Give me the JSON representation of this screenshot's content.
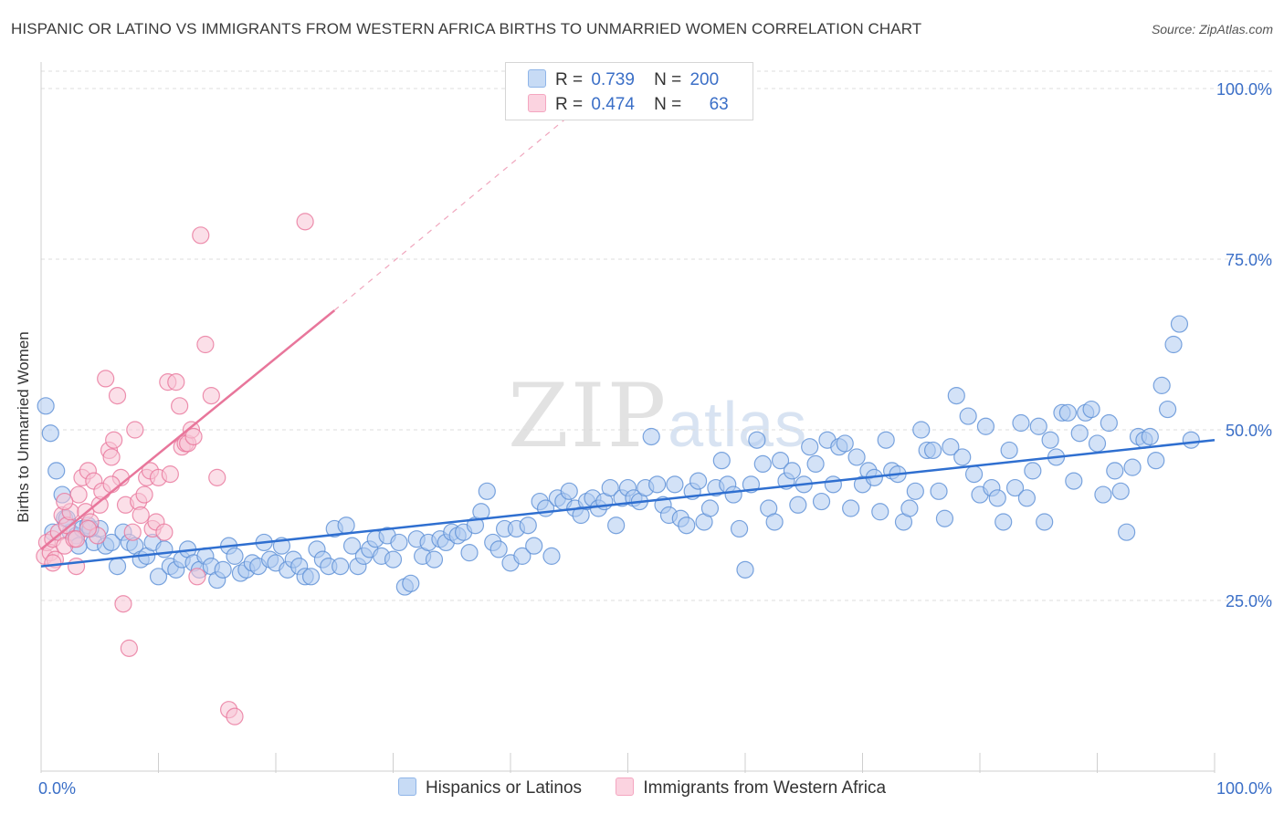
{
  "header": {
    "title": "HISPANIC OR LATINO VS IMMIGRANTS FROM WESTERN AFRICA BIRTHS TO UNMARRIED WOMEN CORRELATION CHART",
    "source": "Source: ZipAtlas.com"
  },
  "watermark": {
    "zip": "ZIP",
    "atlas": "atlas"
  },
  "legend": {
    "rows": [
      {
        "r_label": "R =",
        "r_value": "0.739",
        "n_label": "N =",
        "n_value": "200",
        "color": "#8fb5e8"
      },
      {
        "r_label": "R =",
        "r_value": "0.474",
        "n_label": "N =",
        "n_value": "63",
        "color": "#f4a6c0"
      }
    ]
  },
  "bottom_legend": {
    "items": [
      {
        "label": "Hispanics or Latinos",
        "color": "#8fb5e8"
      },
      {
        "label": "Immigrants from Western Africa",
        "color": "#f4a6c0"
      }
    ]
  },
  "chart_data": {
    "type": "scatter",
    "title": "HISPANIC OR LATINO VS IMMIGRANTS FROM WESTERN AFRICA BIRTHS TO UNMARRIED WOMEN CORRELATION CHART",
    "xlabel": "",
    "ylabel": "Births to Unmarried Women",
    "xlim": [
      0,
      100
    ],
    "ylim": [
      0,
      100
    ],
    "x_tick_labels": [
      "0.0%",
      "100.0%"
    ],
    "y_tick_labels": [
      "25.0%",
      "50.0%",
      "75.0%",
      "100.0%"
    ],
    "y_ticks": [
      25,
      50,
      75,
      100
    ],
    "grid": true,
    "series": [
      {
        "name": "Hispanics or Latinos",
        "color": "#5b8fd6",
        "fill": "#aecbf0",
        "trend": {
          "x": [
            0,
            100
          ],
          "y": [
            30.0,
            48.5
          ]
        },
        "points": [
          [
            0.4,
            53.5
          ],
          [
            0.8,
            49.5
          ],
          [
            1.3,
            44
          ],
          [
            1.8,
            40.5
          ],
          [
            2.0,
            37
          ],
          [
            2.5,
            35
          ],
          [
            3.0,
            34.5
          ],
          [
            3.5,
            35.5
          ],
          [
            4.0,
            36
          ],
          [
            4.5,
            33.5
          ],
          [
            5.0,
            35.5
          ],
          [
            5.5,
            33
          ],
          [
            6.0,
            33.5
          ],
          [
            6.5,
            30
          ],
          [
            7.0,
            35
          ],
          [
            7.5,
            33.5
          ],
          [
            8.0,
            33
          ],
          [
            8.5,
            31
          ],
          [
            9.0,
            31.5
          ],
          [
            9.5,
            33.5
          ],
          [
            10.0,
            28.5
          ],
          [
            10.5,
            32.5
          ],
          [
            11.0,
            30
          ],
          [
            11.5,
            29.5
          ],
          [
            12.0,
            31
          ],
          [
            12.5,
            32.5
          ],
          [
            13.0,
            30.5
          ],
          [
            13.5,
            29.5
          ],
          [
            14.0,
            31.5
          ],
          [
            14.5,
            30
          ],
          [
            15.0,
            28
          ],
          [
            15.5,
            29.5
          ],
          [
            16.0,
            33
          ],
          [
            16.5,
            31.5
          ],
          [
            17.0,
            29
          ],
          [
            17.5,
            29.5
          ],
          [
            18.0,
            30.5
          ],
          [
            18.5,
            30
          ],
          [
            19.0,
            33.5
          ],
          [
            19.5,
            31
          ],
          [
            20.0,
            30.5
          ],
          [
            20.5,
            33
          ],
          [
            21.0,
            29.5
          ],
          [
            21.5,
            31
          ],
          [
            22.0,
            30
          ],
          [
            22.5,
            28.5
          ],
          [
            23.0,
            28.5
          ],
          [
            23.5,
            32.5
          ],
          [
            24.0,
            31
          ],
          [
            24.5,
            30
          ],
          [
            25.0,
            35.5
          ],
          [
            25.5,
            30
          ],
          [
            26.0,
            36
          ],
          [
            26.5,
            33
          ],
          [
            27.0,
            30
          ],
          [
            27.5,
            31.5
          ],
          [
            28.0,
            32.5
          ],
          [
            28.5,
            34
          ],
          [
            29.0,
            31.5
          ],
          [
            29.5,
            34.5
          ],
          [
            30.0,
            31
          ],
          [
            30.5,
            33.5
          ],
          [
            31.0,
            27
          ],
          [
            31.5,
            27.5
          ],
          [
            32.0,
            34
          ],
          [
            32.5,
            31.5
          ],
          [
            33.0,
            33.5
          ],
          [
            33.5,
            31
          ],
          [
            34.0,
            34
          ],
          [
            34.5,
            33.5
          ],
          [
            35.0,
            35
          ],
          [
            35.5,
            34.5
          ],
          [
            36.0,
            35
          ],
          [
            36.5,
            32
          ],
          [
            37.0,
            36
          ],
          [
            37.5,
            38
          ],
          [
            38.0,
            41
          ],
          [
            38.5,
            33.5
          ],
          [
            39.0,
            32.5
          ],
          [
            39.5,
            35.5
          ],
          [
            40.0,
            30.5
          ],
          [
            40.5,
            35.5
          ],
          [
            41.0,
            31.5
          ],
          [
            41.5,
            36
          ],
          [
            42.0,
            33
          ],
          [
            42.5,
            39.5
          ],
          [
            43.0,
            38.5
          ],
          [
            43.5,
            31.5
          ],
          [
            44.0,
            40
          ],
          [
            44.5,
            39.5
          ],
          [
            45.0,
            41
          ],
          [
            45.5,
            38.5
          ],
          [
            46.0,
            37.5
          ],
          [
            46.5,
            39.5
          ],
          [
            47.0,
            40
          ],
          [
            47.5,
            38.5
          ],
          [
            48.0,
            39.5
          ],
          [
            48.5,
            41.5
          ],
          [
            49.0,
            36
          ],
          [
            49.5,
            40
          ],
          [
            50.0,
            41.5
          ],
          [
            50.5,
            40
          ],
          [
            51.0,
            39.5
          ],
          [
            51.5,
            41.5
          ],
          [
            52.0,
            49
          ],
          [
            52.5,
            42
          ],
          [
            53.0,
            39
          ],
          [
            53.5,
            37.5
          ],
          [
            54.0,
            42
          ],
          [
            54.5,
            37
          ],
          [
            55.0,
            36
          ],
          [
            55.5,
            41
          ],
          [
            56.0,
            42.5
          ],
          [
            56.5,
            36.5
          ],
          [
            57.0,
            38.5
          ],
          [
            57.5,
            41.5
          ],
          [
            58.0,
            45.5
          ],
          [
            58.5,
            42
          ],
          [
            59.0,
            40.5
          ],
          [
            59.5,
            35.5
          ],
          [
            60.0,
            29.5
          ],
          [
            60.5,
            42
          ],
          [
            61.0,
            48.5
          ],
          [
            61.5,
            45
          ],
          [
            62.0,
            38.5
          ],
          [
            62.5,
            36.5
          ],
          [
            63.0,
            45.5
          ],
          [
            63.5,
            42.5
          ],
          [
            64.0,
            44
          ],
          [
            64.5,
            39
          ],
          [
            65.0,
            42
          ],
          [
            65.5,
            47.5
          ],
          [
            66.0,
            45
          ],
          [
            66.5,
            39.5
          ],
          [
            67.0,
            48.5
          ],
          [
            67.5,
            42
          ],
          [
            68.0,
            47.5
          ],
          [
            68.5,
            48
          ],
          [
            69.0,
            38.5
          ],
          [
            69.5,
            46
          ],
          [
            70.0,
            42
          ],
          [
            70.5,
            44
          ],
          [
            71.0,
            43
          ],
          [
            71.5,
            38
          ],
          [
            72.0,
            48.5
          ],
          [
            72.5,
            44
          ],
          [
            73.0,
            43.5
          ],
          [
            73.5,
            36.5
          ],
          [
            74.0,
            38.5
          ],
          [
            74.5,
            41
          ],
          [
            75.0,
            50
          ],
          [
            75.5,
            47
          ],
          [
            76.0,
            47
          ],
          [
            76.5,
            41
          ],
          [
            77.0,
            37
          ],
          [
            77.5,
            47.5
          ],
          [
            78.0,
            55
          ],
          [
            78.5,
            46
          ],
          [
            79.0,
            52
          ],
          [
            79.5,
            43.5
          ],
          [
            80.0,
            40.5
          ],
          [
            80.5,
            50.5
          ],
          [
            81.0,
            41.5
          ],
          [
            81.5,
            40
          ],
          [
            82.0,
            36.5
          ],
          [
            82.5,
            47
          ],
          [
            83.0,
            41.5
          ],
          [
            83.5,
            51
          ],
          [
            84.0,
            40
          ],
          [
            84.5,
            44
          ],
          [
            85.0,
            50.5
          ],
          [
            85.5,
            36.5
          ],
          [
            86.0,
            48.5
          ],
          [
            86.5,
            46
          ],
          [
            87.0,
            52.5
          ],
          [
            87.5,
            52.5
          ],
          [
            88.0,
            42.5
          ],
          [
            88.5,
            49.5
          ],
          [
            89.0,
            52.5
          ],
          [
            89.5,
            53
          ],
          [
            90.0,
            48
          ],
          [
            90.5,
            40.5
          ],
          [
            91.0,
            51
          ],
          [
            91.5,
            44
          ],
          [
            92.0,
            41
          ],
          [
            92.5,
            35
          ],
          [
            93.0,
            44.5
          ],
          [
            93.5,
            49
          ],
          [
            94.0,
            48.5
          ],
          [
            94.5,
            49
          ],
          [
            95.0,
            45.5
          ],
          [
            95.5,
            56.5
          ],
          [
            96.0,
            53
          ],
          [
            96.5,
            62.5
          ],
          [
            97.0,
            65.5
          ],
          [
            98.0,
            48.5
          ],
          [
            1.0,
            35
          ],
          [
            2.2,
            37
          ],
          [
            3.2,
            33
          ],
          [
            4.2,
            35.5
          ]
        ]
      },
      {
        "name": "Immigrants from Western Africa",
        "color": "#e8769b",
        "fill": "#f8c4d5",
        "trend": {
          "x": [
            0,
            25
          ],
          "y": [
            32.5,
            67.5
          ]
        },
        "trend_dashed": {
          "x": [
            25,
            45
          ],
          "y": [
            67.5,
            96
          ]
        },
        "points": [
          [
            0.3,
            31.5
          ],
          [
            0.5,
            33.5
          ],
          [
            0.8,
            32
          ],
          [
            1.0,
            34
          ],
          [
            1.2,
            31
          ],
          [
            1.5,
            35
          ],
          [
            1.8,
            37.5
          ],
          [
            2.0,
            33
          ],
          [
            2.2,
            36
          ],
          [
            2.5,
            38
          ],
          [
            2.8,
            34
          ],
          [
            3.0,
            30
          ],
          [
            3.2,
            40.5
          ],
          [
            3.5,
            43
          ],
          [
            3.8,
            38
          ],
          [
            4.0,
            44
          ],
          [
            4.2,
            36.5
          ],
          [
            4.5,
            42.5
          ],
          [
            4.8,
            34.5
          ],
          [
            5.0,
            39
          ],
          [
            5.2,
            41
          ],
          [
            5.5,
            57.5
          ],
          [
            5.8,
            47
          ],
          [
            6.0,
            46
          ],
          [
            6.2,
            48.5
          ],
          [
            6.5,
            55
          ],
          [
            6.8,
            43
          ],
          [
            7.0,
            24.5
          ],
          [
            7.2,
            39
          ],
          [
            7.5,
            18
          ],
          [
            7.8,
            35
          ],
          [
            8.0,
            50
          ],
          [
            8.3,
            39.5
          ],
          [
            8.5,
            37.5
          ],
          [
            8.8,
            40.5
          ],
          [
            9.0,
            43
          ],
          [
            9.3,
            44
          ],
          [
            9.5,
            35.5
          ],
          [
            9.8,
            36.5
          ],
          [
            10.0,
            43
          ],
          [
            10.5,
            35
          ],
          [
            10.8,
            57
          ],
          [
            11.0,
            43.5
          ],
          [
            11.5,
            57
          ],
          [
            11.8,
            53.5
          ],
          [
            12.0,
            47.5
          ],
          [
            12.3,
            48
          ],
          [
            12.5,
            48
          ],
          [
            12.8,
            50
          ],
          [
            13.0,
            49
          ],
          [
            13.3,
            28.5
          ],
          [
            13.6,
            78.5
          ],
          [
            14.0,
            62.5
          ],
          [
            14.5,
            55
          ],
          [
            15.0,
            43
          ],
          [
            22.5,
            80.5
          ],
          [
            16.0,
            9
          ],
          [
            16.5,
            8
          ],
          [
            3.0,
            34
          ],
          [
            2.0,
            39.5
          ],
          [
            4.0,
            35.5
          ],
          [
            6.0,
            42
          ],
          [
            1.0,
            30.5
          ]
        ]
      }
    ]
  }
}
